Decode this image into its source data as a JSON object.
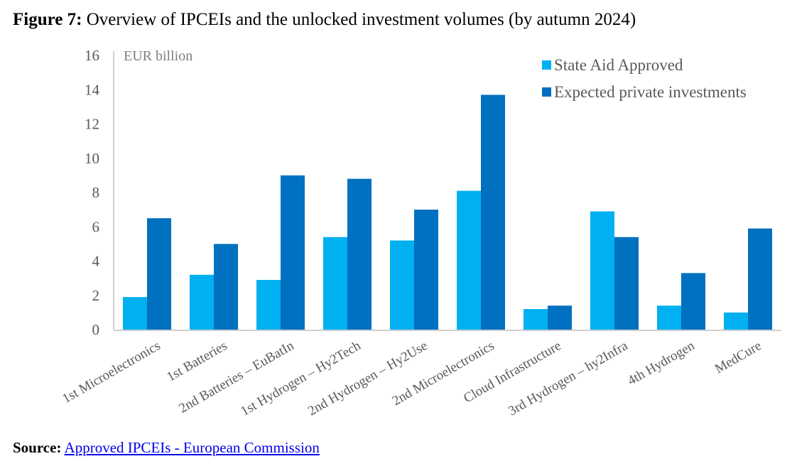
{
  "figure": {
    "label": "Figure 7:",
    "title": "Overview of IPCEIs and the unlocked investment volumes (by autumn 2024)"
  },
  "source": {
    "label": "Source:",
    "link_text": "Approved IPCEIs - European Commission"
  },
  "chart_data": {
    "type": "bar",
    "title": "Overview of IPCEIs and the unlocked investment volumes (by autumn 2024)",
    "xlabel": "",
    "ylabel": "EUR billion",
    "unit_label": "EUR billion",
    "ylim": [
      0,
      16
    ],
    "yticks": [
      0,
      2,
      4,
      6,
      8,
      10,
      12,
      14,
      16
    ],
    "grid": false,
    "legend_position": "top-right",
    "categories": [
      "1st Microelectronics",
      "1st Batteries",
      "2nd Batteries – EuBatIn",
      "1st Hydrogen – Hy2Tech",
      "2nd Hydrogen – Hy2Use",
      "2nd Microelectronics",
      "Cloud Infrastructure",
      "3rd Hydrogen – hy2Infra",
      "4th Hydrogen",
      "MedCure"
    ],
    "series": [
      {
        "name": "State Aid Approved",
        "color": "#00b0f0",
        "values": [
          1.9,
          3.2,
          2.9,
          5.4,
          5.2,
          8.1,
          1.2,
          6.9,
          1.4,
          1.0
        ]
      },
      {
        "name": "Expected private investments",
        "color": "#0070c0",
        "values": [
          6.5,
          5.0,
          9.0,
          8.8,
          7.0,
          13.7,
          1.4,
          5.4,
          3.3,
          5.9
        ]
      }
    ]
  }
}
